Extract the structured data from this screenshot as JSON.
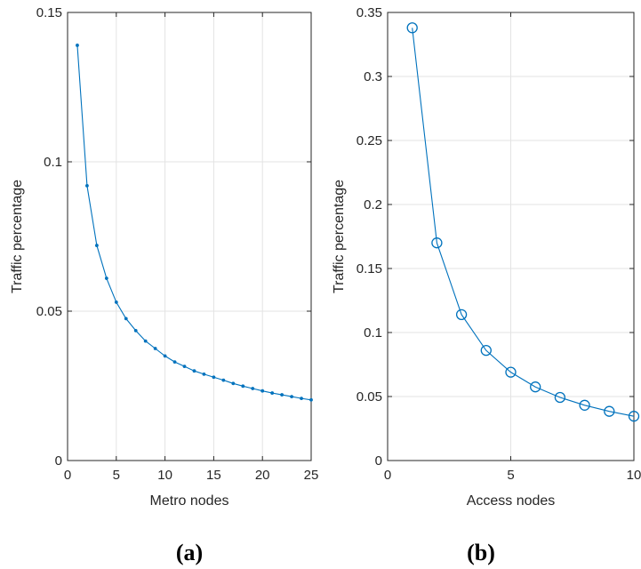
{
  "chart_data": [
    {
      "type": "line",
      "panel_label": "(a)",
      "xlabel": "Metro nodes",
      "ylabel": "Traffic percentage",
      "xlim": [
        0,
        25
      ],
      "ylim": [
        0,
        0.15
      ],
      "xticks": [
        0,
        5,
        10,
        15,
        20,
        25
      ],
      "xtick_labels": [
        "0",
        "5",
        "10",
        "15",
        "20",
        "25"
      ],
      "yticks": [
        0,
        0.05,
        0.1,
        0.15
      ],
      "ytick_labels": [
        "0",
        "0.05",
        "0.1",
        "0.15"
      ],
      "grid": true,
      "marker": "dot",
      "color": "#0072bd",
      "series": [
        {
          "x": [
            1,
            2,
            3,
            4,
            5,
            6,
            7,
            8,
            9,
            10,
            11,
            12,
            13,
            14,
            15,
            16,
            17,
            18,
            19,
            20,
            21,
            22,
            23,
            24,
            25
          ],
          "values": [
            0.139,
            0.092,
            0.072,
            0.061,
            0.053,
            0.0475,
            0.0435,
            0.04,
            0.0375,
            0.035,
            0.033,
            0.0315,
            0.03,
            0.0289,
            0.0279,
            0.0269,
            0.0258,
            0.0249,
            0.0241,
            0.0233,
            0.0226,
            0.022,
            0.0214,
            0.0208,
            0.0203
          ]
        }
      ]
    },
    {
      "type": "line",
      "panel_label": "(b)",
      "xlabel": "Access nodes",
      "ylabel": "Traffic percentage",
      "xlim": [
        0,
        10
      ],
      "ylim": [
        0,
        0.35
      ],
      "xticks": [
        0,
        5,
        10
      ],
      "xtick_labels": [
        "0",
        "5",
        "10"
      ],
      "yticks": [
        0,
        0.05,
        0.1,
        0.15,
        0.2,
        0.25,
        0.3,
        0.35
      ],
      "ytick_labels": [
        "0",
        "0.05",
        "0.1",
        "0.15",
        "0.2",
        "0.25",
        "0.3",
        "0.35"
      ],
      "grid": true,
      "marker": "circle",
      "color": "#0072bd",
      "series": [
        {
          "x": [
            1,
            2,
            3,
            4,
            5,
            6,
            7,
            8,
            9,
            10
          ],
          "values": [
            0.338,
            0.17,
            0.114,
            0.086,
            0.069,
            0.0575,
            0.0493,
            0.0432,
            0.0384,
            0.0346
          ]
        }
      ]
    }
  ]
}
